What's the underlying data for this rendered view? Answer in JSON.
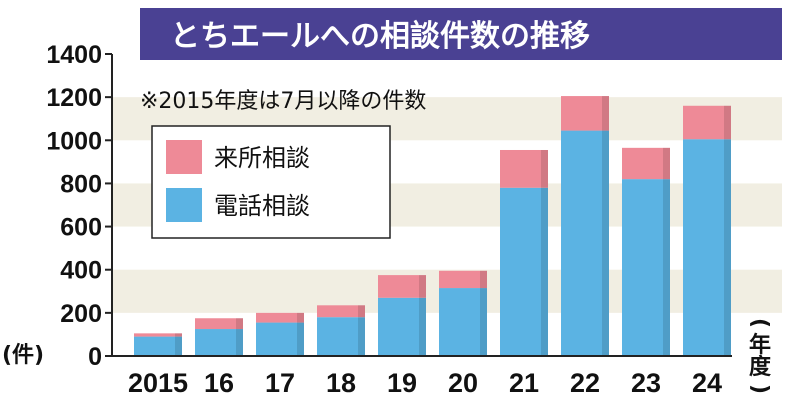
{
  "chart_data": {
    "type": "bar",
    "stacked": true,
    "title": "とちエールへの相談件数の推移",
    "note": "※2015年度は7月以降の件数",
    "categories": [
      "2015",
      "16",
      "17",
      "18",
      "19",
      "20",
      "21",
      "22",
      "23",
      "24"
    ],
    "series": [
      {
        "name": "電話相談",
        "values": [
          90,
          125,
          155,
          180,
          270,
          315,
          780,
          1045,
          820,
          1005
        ],
        "color": "#5bb3e3"
      },
      {
        "name": "来所相談",
        "values": [
          15,
          50,
          45,
          55,
          105,
          80,
          175,
          160,
          145,
          155
        ],
        "color": "#ee8a97"
      }
    ],
    "ylim": [
      0,
      1400
    ],
    "yticks": [
      0,
      200,
      400,
      600,
      800,
      1000,
      1200,
      1400
    ],
    "ylabel_unit": "(件)",
    "xlabel_unit": "(年度)",
    "legend_position": "top-left",
    "grid_bands": true,
    "colors": {
      "title_bg": "#4a4193",
      "title_text": "#ffffff",
      "band": "#f1eee2"
    }
  }
}
